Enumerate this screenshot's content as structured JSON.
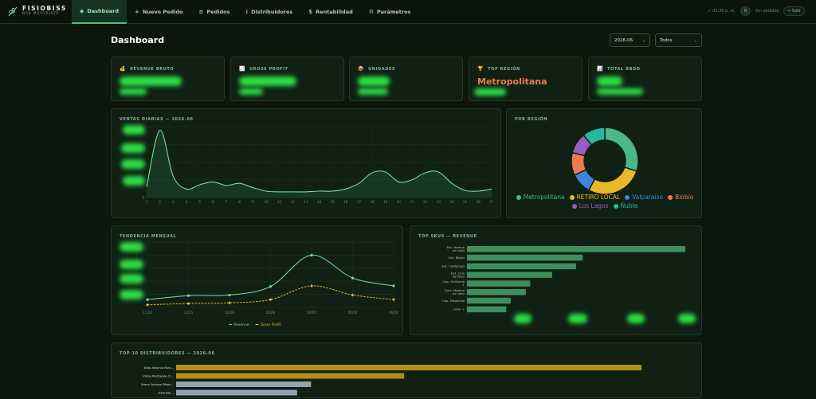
{
  "app": {
    "name": "FISIOBISS",
    "subtitle": "B2B MAYORISTA"
  },
  "nav": [
    {
      "label": "Dashboard",
      "icon": "◆"
    },
    {
      "label": "Nuevo Pedido",
      "icon": "+"
    },
    {
      "label": "Pedidos",
      "icon": "≡"
    },
    {
      "label": "Distribuidores",
      "icon": "⁝"
    },
    {
      "label": "Rentabilidad",
      "icon": "$"
    },
    {
      "label": "Parámetros",
      "icon": "⚙"
    }
  ],
  "topright": {
    "time": "✓ 01:20 p. m.",
    "badge": "0",
    "orders": "Sin pedidos",
    "logout": "↪ Salir"
  },
  "page": {
    "title": "Dashboard",
    "period": "2026-06",
    "filter": "Todos"
  },
  "kpis": [
    {
      "label": "REVENUE BRUTO",
      "icon": "💰"
    },
    {
      "label": "GROSS PROFIT",
      "icon": "📈"
    },
    {
      "label": "UNIDADES",
      "icon": "📦"
    },
    {
      "label": "TOP REGIÓN",
      "icon": "🏆",
      "value": "Metropolitana"
    },
    {
      "label": "TOTAL BBDD",
      "icon": "📊"
    }
  ],
  "panels": {
    "daily": "VENTAS DIARIAS — 2026-06",
    "region": "POR REGIÓN",
    "monthly": "TENDENCIA MENSUAL",
    "skus": "TOP SKUS — REVENUE",
    "distributors": "TOP 10 DISTRIBUIDORES — 2026-06"
  },
  "colors": {
    "accent": "#4cc07a",
    "gold": "#e8b72a",
    "region": "#ef7a52"
  },
  "chart_data": [
    {
      "type": "area",
      "x": [
        1,
        2,
        3,
        4,
        5,
        6,
        7,
        8,
        9,
        10,
        11,
        12,
        13,
        14,
        15,
        16,
        17,
        18,
        19,
        20,
        21,
        22,
        23,
        24,
        25,
        26,
        27
      ],
      "x_tick_labels": [
        "1",
        "2",
        "3",
        "4",
        "5",
        "6",
        "7",
        "8",
        "9",
        "10",
        "11",
        "12",
        "13",
        "14",
        "15",
        "16",
        "17",
        "18",
        "19",
        "20",
        "21",
        "22",
        "23",
        "24",
        "25",
        "26",
        "27"
      ],
      "values": [
        0.15,
        0.95,
        0.3,
        0.12,
        0.18,
        0.22,
        0.17,
        0.2,
        0.14,
        0.09,
        0.08,
        0.08,
        0.08,
        0.09,
        0.09,
        0.12,
        0.2,
        0.35,
        0.36,
        0.22,
        0.25,
        0.35,
        0.36,
        0.2,
        0.1,
        0.09,
        0.12
      ],
      "y_tick_visible": [
        "0"
      ],
      "ylim": [
        0,
        1
      ]
    },
    {
      "type": "pie",
      "donut": true,
      "labels": [
        "Metropolitana",
        "RETIRO LOCAL",
        "Valparaíso",
        "Biobío",
        "Los Lagos",
        "Ñuble"
      ],
      "values": [
        30,
        28,
        10,
        11,
        10,
        11
      ],
      "colors": [
        "#4cb883",
        "#e8b72a",
        "#3f85d9",
        "#ef7a52",
        "#9a5cc6",
        "#27b89a"
      ]
    },
    {
      "type": "line",
      "categories": [
        "11/24",
        "12/25",
        "02/26",
        "03/26",
        "04/26",
        "05/26",
        "06/26"
      ],
      "series": [
        {
          "name": "Revenue",
          "values": [
            0.12,
            0.18,
            0.19,
            0.32,
            0.8,
            0.45,
            0.33
          ],
          "color": "#7fd6a3"
        },
        {
          "name": "Gross Profit",
          "values": [
            0.04,
            0.06,
            0.07,
            0.12,
            0.33,
            0.19,
            0.12
          ],
          "color": "#e8b72a"
        }
      ],
      "ylim": [
        0,
        1
      ]
    },
    {
      "type": "bar",
      "orientation": "horizontal",
      "categories": [
        "Est. Melena de León",
        "Ext. Reishi",
        "Ext. Cordyceps",
        "Ext. Cola de Pavo",
        "Cap. Ovilinche +",
        "Gom. Melena de León",
        "Cap. Magnesio",
        "Liber +"
      ],
      "values": [
        100,
        53,
        50,
        39,
        29,
        27,
        20,
        18
      ]
    },
    {
      "type": "bar",
      "orientation": "horizontal",
      "categories": [
        "Aldo Antonio Ruvi...",
        "Vilma Martarala Cr...",
        "Karen Andrea Pérez...",
        "Gabriela..."
      ],
      "values": [
        100,
        49,
        29,
        26
      ],
      "colors": [
        "#b58e1a",
        "#b58e1a",
        "#8fa4ae",
        "#8fa4ae"
      ]
    }
  ]
}
